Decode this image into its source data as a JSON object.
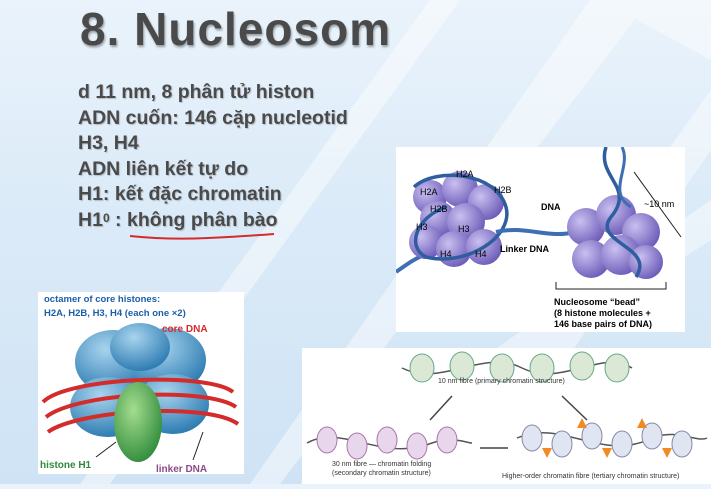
{
  "title": "8. Nucleosom",
  "bullets": {
    "line1": " d 11 nm, 8 phân tử histon",
    "line2": "ADN cuốn: 146 cặp nucleotid",
    "line3": "H3, H4",
    "line4": "ADN liên kết tự do",
    "line5": "H1: kết đặc chromatin",
    "line6_prefix": "H1",
    "line6_sup": "0",
    "line6_sep": " : ",
    "line6_rest": "không phân bào"
  },
  "fig_right": {
    "h2a_top": "H2A",
    "h2a_left": "H2A",
    "h2b_left": "H2B",
    "h2b_right": "H2B",
    "h3_left": "H3",
    "h3_mid": "H3",
    "h4_a": "H4",
    "h4_b": "H4",
    "linker": "Linker DNA",
    "dna": "DNA",
    "size": "~10 nm",
    "bead_l1": "Nucleosome “bead”",
    "bead_l2": "(8 histone molecules +",
    "bead_l3": "146 base pairs of DNA)"
  },
  "fig_left": {
    "head1": "octamer of core histones:",
    "head2": "H2A, H2B, H3, H4 (each one ×2)",
    "core_dna": "core DNA",
    "histone_h1": "histone H1",
    "linker_dna": "linker DNA"
  },
  "fig_bottom": {
    "cap_top": "10 nm fibre (primary chromatin structure)",
    "cap_left1": "30 nm fibre — chromatin folding",
    "cap_left2": "(secondary chromatin structure)",
    "cap_right": "Higher-order chromatin fibre (tertiary chromatin structure)"
  },
  "colors": {
    "title": "#4a4a4a",
    "histone_purple": "#8f7fd0",
    "dna_blue": "#3d6fb4",
    "red_dna": "#d42b2b",
    "h1_green": "#4caf50",
    "label_blue": "#1b5fa8"
  }
}
